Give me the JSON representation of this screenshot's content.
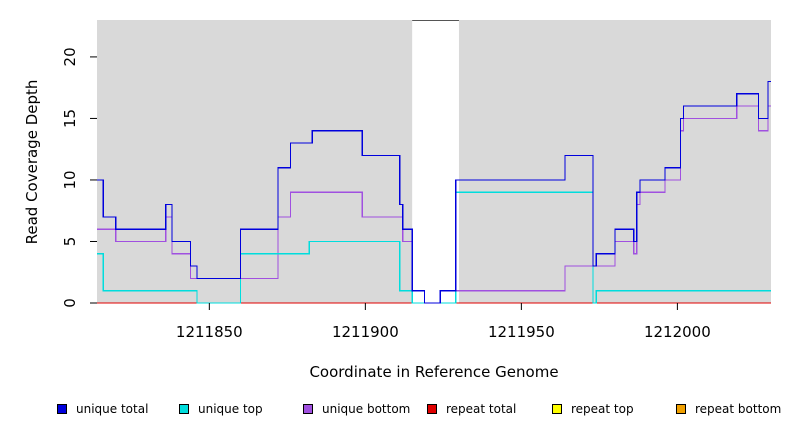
{
  "chart_data": {
    "type": "line",
    "xlabel": "Coordinate in Reference Genome",
    "ylabel": "Read Coverage Depth",
    "xlim": [
      1211814,
      1212030
    ],
    "ylim": [
      0,
      23
    ],
    "x_ticks": [
      1211850,
      1211900,
      1211950,
      1212000
    ],
    "x_tick_labels": [
      "1211850",
      "1211900",
      "1211950",
      "1212000"
    ],
    "y_ticks": [
      0,
      5,
      10,
      15,
      20
    ],
    "y_tick_labels": [
      "0",
      "5",
      "10",
      "15",
      "20"
    ],
    "grid": false,
    "background_color": "#d9d9d9",
    "uncovered_region": [
      1211915,
      1211930
    ],
    "legend_position": "bottom",
    "series": [
      {
        "name": "unique total",
        "color": "#0000dd",
        "steps": [
          [
            1211814,
            10
          ],
          [
            1211816,
            7
          ],
          [
            1211820,
            6
          ],
          [
            1211836,
            8
          ],
          [
            1211838,
            5
          ],
          [
            1211844,
            3
          ],
          [
            1211846,
            2
          ],
          [
            1211860,
            6
          ],
          [
            1211872,
            11
          ],
          [
            1211876,
            13
          ],
          [
            1211883,
            14
          ],
          [
            1211899,
            12
          ],
          [
            1211911,
            8
          ],
          [
            1211912,
            6
          ],
          [
            1211915,
            1
          ],
          [
            1211919,
            0
          ],
          [
            1211924,
            1
          ],
          [
            1211929,
            10
          ],
          [
            1211964,
            12
          ],
          [
            1211973,
            3
          ],
          [
            1211974,
            4
          ],
          [
            1211980,
            6
          ],
          [
            1211986,
            5
          ],
          [
            1211987,
            9
          ],
          [
            1211988,
            10
          ],
          [
            1211996,
            11
          ],
          [
            1212001,
            15
          ],
          [
            1212002,
            16
          ],
          [
            1212019,
            17
          ],
          [
            1212026,
            15
          ],
          [
            1212029,
            18
          ]
        ]
      },
      {
        "name": "unique top",
        "color": "#00dddd",
        "steps": [
          [
            1211814,
            4
          ],
          [
            1211816,
            1
          ],
          [
            1211846,
            0
          ],
          [
            1211860,
            4
          ],
          [
            1211882,
            5
          ],
          [
            1211911,
            1
          ],
          [
            1211915,
            0
          ],
          [
            1211929,
            9
          ],
          [
            1211973,
            0
          ],
          [
            1211974,
            1
          ]
        ]
      },
      {
        "name": "unique bottom",
        "color": "#a050e0",
        "steps": [
          [
            1211814,
            6
          ],
          [
            1211820,
            5
          ],
          [
            1211836,
            7
          ],
          [
            1211838,
            4
          ],
          [
            1211844,
            2
          ],
          [
            1211872,
            7
          ],
          [
            1211876,
            9
          ],
          [
            1211899,
            7
          ],
          [
            1211912,
            5
          ],
          [
            1211915,
            1
          ],
          [
            1211919,
            0
          ],
          [
            1211924,
            1
          ],
          [
            1211964,
            3
          ],
          [
            1211980,
            5
          ],
          [
            1211986,
            4
          ],
          [
            1211987,
            8
          ],
          [
            1211988,
            9
          ],
          [
            1211996,
            10
          ],
          [
            1212001,
            14
          ],
          [
            1212002,
            15
          ],
          [
            1212019,
            16
          ],
          [
            1212026,
            14
          ],
          [
            1212029,
            16
          ]
        ]
      },
      {
        "name": "repeat total",
        "color": "#e00000",
        "steps": [
          [
            1211814,
            0
          ]
        ]
      },
      {
        "name": "repeat top",
        "color": "#ffff00",
        "steps": [
          [
            1211814,
            0
          ]
        ]
      },
      {
        "name": "repeat bottom",
        "color": "#f0a000",
        "steps": [
          [
            1211814,
            0
          ]
        ]
      }
    ]
  }
}
